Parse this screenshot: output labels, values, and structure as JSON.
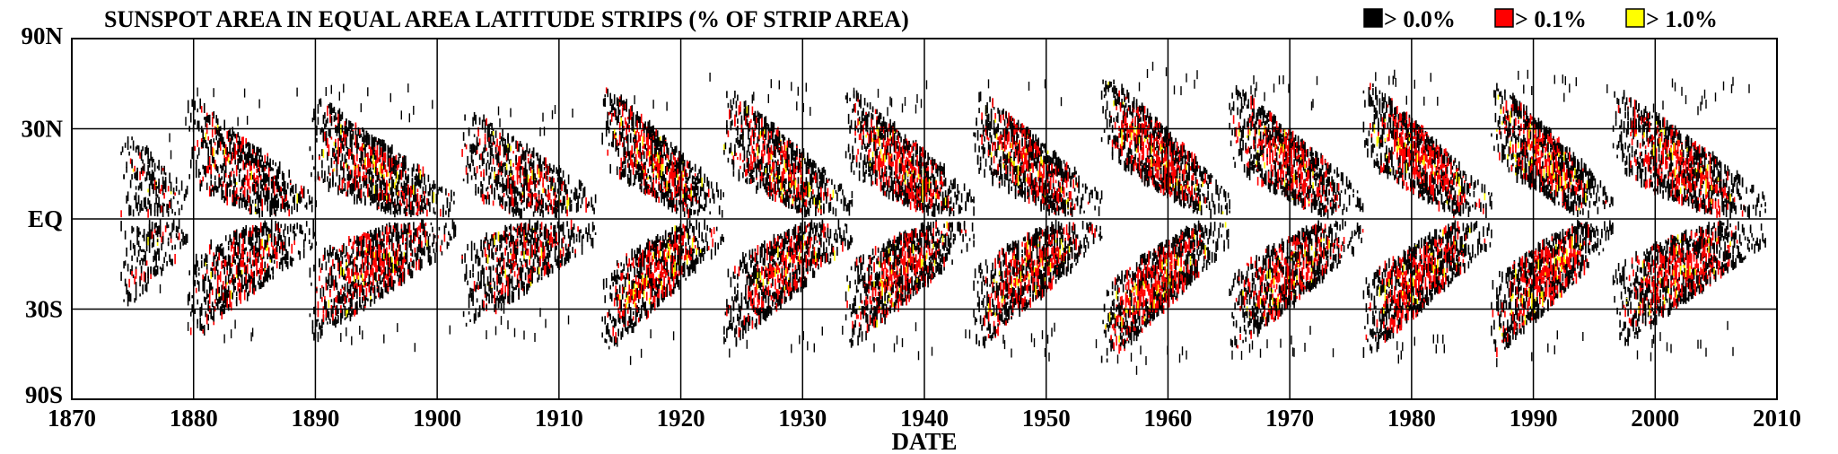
{
  "chart_data": {
    "type": "heatmap",
    "title": "SUNSPOT AREA IN EQUAL AREA LATITUDE STRIPS (% OF STRIP AREA)",
    "xlabel": "DATE",
    "ylabel": "",
    "xlim": [
      1870,
      2010
    ],
    "ylim": [
      -90,
      90
    ],
    "x_ticks": [
      1870,
      1880,
      1890,
      1900,
      1910,
      1920,
      1930,
      1940,
      1950,
      1960,
      1970,
      1980,
      1990,
      2000,
      2010
    ],
    "x_tick_labels": [
      "1870",
      "1880",
      "1890",
      "1900",
      "1910",
      "1920",
      "1930",
      "1940",
      "1950",
      "1960",
      "1970",
      "1980",
      "1990",
      "2000",
      "2010"
    ],
    "y_ticks": [
      90,
      30,
      0,
      -30,
      -90
    ],
    "y_tick_labels": [
      "90N",
      "30N",
      "EQ",
      "30S",
      "90S"
    ],
    "y_scale": "sine-latitude (equal area)",
    "grid": true,
    "legend_position": "top-right",
    "legend": [
      {
        "label": "> 0.0%",
        "color": "#000000"
      },
      {
        "label": "> 0.1%",
        "color": "#ff0000"
      },
      {
        "label": "> 1.0%",
        "color": "#ffff00"
      }
    ],
    "cycles": [
      {
        "start": 1874.0,
        "end": 1879.5,
        "max_lat": 20,
        "min_lat": 6,
        "intensity": 0.3
      },
      {
        "start": 1879.5,
        "end": 1890.0,
        "max_lat": 32,
        "min_lat": 5,
        "intensity": 0.6
      },
      {
        "start": 1889.5,
        "end": 1901.5,
        "max_lat": 33,
        "min_lat": 5,
        "intensity": 0.75
      },
      {
        "start": 1902.0,
        "end": 1913.0,
        "max_lat": 28,
        "min_lat": 5,
        "intensity": 0.6
      },
      {
        "start": 1913.5,
        "end": 1923.5,
        "max_lat": 38,
        "min_lat": 5,
        "intensity": 0.85
      },
      {
        "start": 1923.5,
        "end": 1934.0,
        "max_lat": 36,
        "min_lat": 5,
        "intensity": 0.8
      },
      {
        "start": 1933.5,
        "end": 1944.0,
        "max_lat": 36,
        "min_lat": 5,
        "intensity": 0.9
      },
      {
        "start": 1944.0,
        "end": 1954.5,
        "max_lat": 36,
        "min_lat": 5,
        "intensity": 0.9
      },
      {
        "start": 1954.5,
        "end": 1965.0,
        "max_lat": 44,
        "min_lat": 5,
        "intensity": 1.0
      },
      {
        "start": 1965.0,
        "end": 1976.0,
        "max_lat": 38,
        "min_lat": 5,
        "intensity": 0.85
      },
      {
        "start": 1976.0,
        "end": 1986.5,
        "max_lat": 40,
        "min_lat": 5,
        "intensity": 0.95
      },
      {
        "start": 1986.5,
        "end": 1996.5,
        "max_lat": 40,
        "min_lat": 5,
        "intensity": 0.95
      },
      {
        "start": 1996.5,
        "end": 2009.0,
        "max_lat": 36,
        "min_lat": 5,
        "intensity": 0.85
      }
    ]
  }
}
